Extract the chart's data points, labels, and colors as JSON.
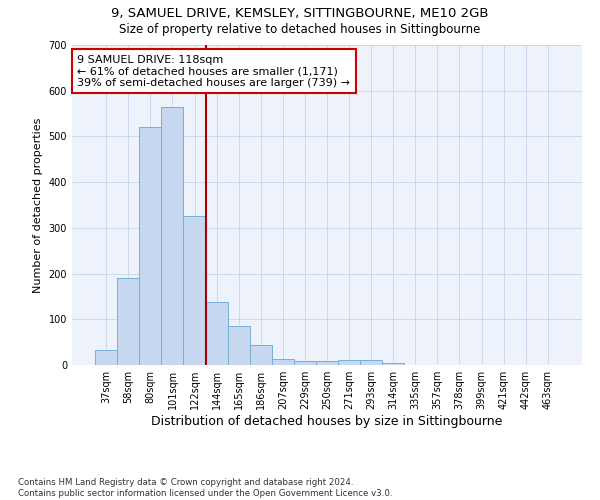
{
  "title1": "9, SAMUEL DRIVE, KEMSLEY, SITTINGBOURNE, ME10 2GB",
  "title2": "Size of property relative to detached houses in Sittingbourne",
  "xlabel": "Distribution of detached houses by size in Sittingbourne",
  "ylabel": "Number of detached properties",
  "categories": [
    "37sqm",
    "58sqm",
    "80sqm",
    "101sqm",
    "122sqm",
    "144sqm",
    "165sqm",
    "186sqm",
    "207sqm",
    "229sqm",
    "250sqm",
    "271sqm",
    "293sqm",
    "314sqm",
    "335sqm",
    "357sqm",
    "378sqm",
    "399sqm",
    "421sqm",
    "442sqm",
    "463sqm"
  ],
  "values": [
    32,
    190,
    520,
    565,
    325,
    138,
    85,
    43,
    13,
    8,
    8,
    10,
    10,
    5,
    0,
    0,
    0,
    0,
    0,
    0,
    0
  ],
  "bar_color": "#c5d8f0",
  "bar_edge_color": "#7aaed4",
  "vline_color": "#aa0000",
  "annotation_text": "9 SAMUEL DRIVE: 118sqm\n← 61% of detached houses are smaller (1,171)\n39% of semi-detached houses are larger (739) →",
  "annotation_box_color": "#ffffff",
  "annotation_box_edge": "#cc0000",
  "footer": "Contains HM Land Registry data © Crown copyright and database right 2024.\nContains public sector information licensed under the Open Government Licence v3.0.",
  "ylim": [
    0,
    700
  ],
  "background_color": "#ffffff",
  "plot_background": "#eef2fb"
}
